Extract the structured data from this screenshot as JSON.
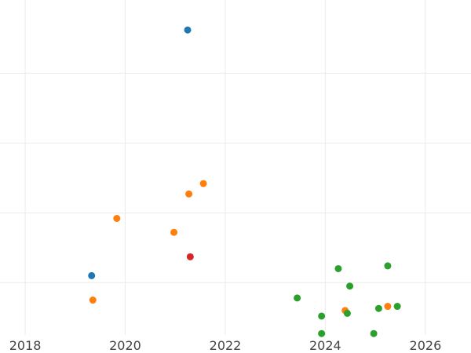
{
  "chart_data": {
    "type": "scatter",
    "title": "",
    "xlabel": "",
    "ylabel": "",
    "x_axis": {
      "scale": "time",
      "ticks": [
        "2018",
        "2020",
        "2022",
        "2024",
        "2026"
      ],
      "range": [
        "2017-07-01",
        "2026-11-30"
      ]
    },
    "y_axis": {
      "tick_labels_visible": false,
      "gridline_values": [
        1,
        2,
        3,
        4
      ],
      "range": [
        0.25,
        5.05
      ]
    },
    "grid": true,
    "legend": "none",
    "series": [
      {
        "color": "#1f77b4",
        "points": [
          {
            "x": "2021-04-01",
            "y": 4.62
          },
          {
            "x": "2019-05-01",
            "y": 1.1
          }
        ]
      },
      {
        "color": "#ff7f0e",
        "points": [
          {
            "x": "2021-07-25",
            "y": 2.42
          },
          {
            "x": "2021-04-10",
            "y": 2.27
          },
          {
            "x": "2019-11-01",
            "y": 1.92
          },
          {
            "x": "2020-12-22",
            "y": 1.72
          },
          {
            "x": "2019-05-10",
            "y": 0.75
          },
          {
            "x": "2024-05-25",
            "y": 0.6
          },
          {
            "x": "2025-04-01",
            "y": 0.66
          }
        ]
      },
      {
        "color": "#d62728",
        "points": [
          {
            "x": "2021-04-20",
            "y": 1.37
          }
        ]
      },
      {
        "color": "#2ca02c",
        "points": [
          {
            "x": "2024-04-05",
            "y": 1.2
          },
          {
            "x": "2025-04-01",
            "y": 1.24
          },
          {
            "x": "2024-06-28",
            "y": 0.95
          },
          {
            "x": "2023-06-10",
            "y": 0.78
          },
          {
            "x": "2025-06-10",
            "y": 0.66
          },
          {
            "x": "2025-01-25",
            "y": 0.63
          },
          {
            "x": "2024-06-10",
            "y": 0.56
          },
          {
            "x": "2023-12-05",
            "y": 0.52
          },
          {
            "x": "2023-12-05",
            "y": 0.27
          },
          {
            "x": "2024-12-20",
            "y": 0.27
          }
        ]
      }
    ]
  }
}
